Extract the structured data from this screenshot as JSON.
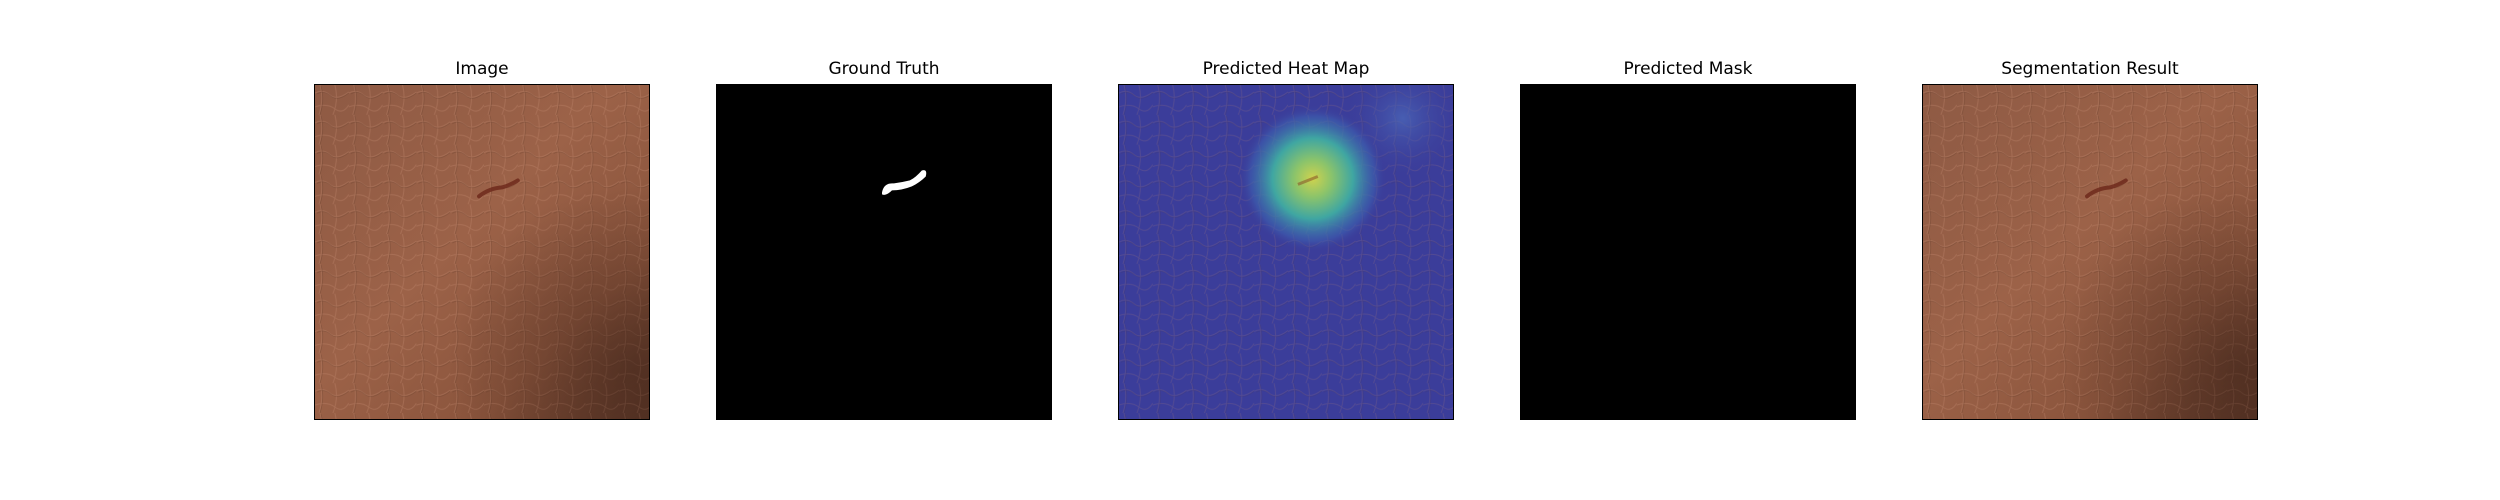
{
  "panels": [
    {
      "title": "Image",
      "icon": "leather-photo"
    },
    {
      "title": "Ground Truth",
      "icon": "binary-mask"
    },
    {
      "title": "Predicted Heat Map",
      "icon": "heatmap-overlay"
    },
    {
      "title": "Predicted Mask",
      "icon": "empty-mask"
    },
    {
      "title": "Segmentation Result",
      "icon": "leather-photo"
    }
  ],
  "colors": {
    "leather_light": "#9a6047",
    "leather_dark": "#5a3424",
    "defect": "#6e2a1c",
    "mask_bg": "#000000",
    "mask_fg": "#ffffff",
    "heat_bg": "#3b3d9a",
    "heat_hot": "#d8d34a"
  }
}
